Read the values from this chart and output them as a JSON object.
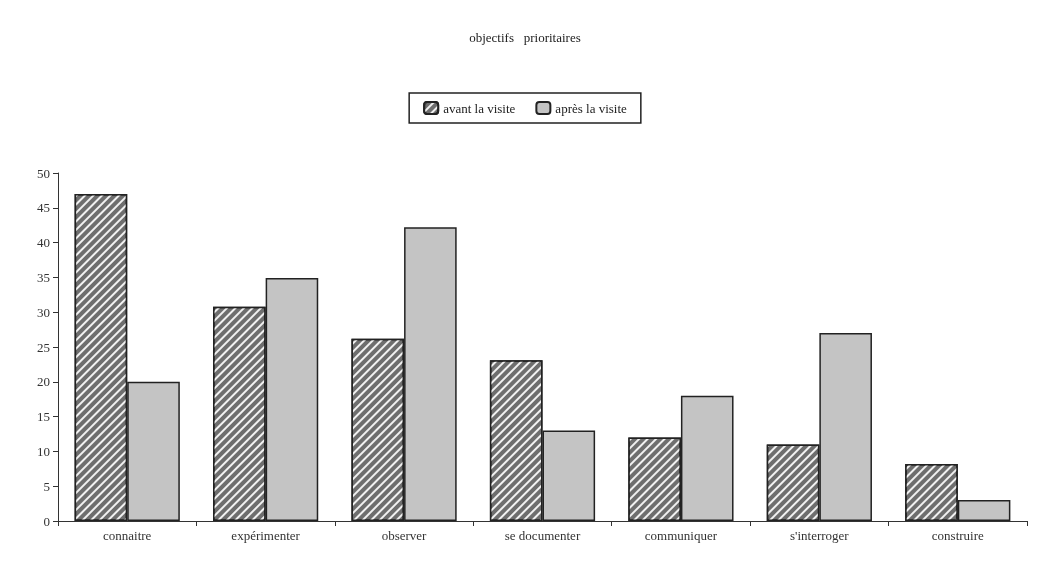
{
  "chart_data": {
    "type": "bar",
    "title": "objectifs   prioritaires",
    "categories": [
      "connaitre",
      "expérimenter",
      "observer",
      "se documenter",
      "communiquer",
      "s'interroger",
      "construire"
    ],
    "series": [
      {
        "name": "avant la visite",
        "color": "#6e6e6e",
        "values": [
          47,
          30.8,
          26.2,
          23.1,
          12,
          11,
          8.2
        ]
      },
      {
        "name": "après la visite",
        "color": "#c4c4c4",
        "values": [
          20,
          34.9,
          42.2,
          13,
          18,
          27,
          3
        ]
      }
    ],
    "ylim": [
      0,
      50
    ],
    "yticks": [
      0,
      5,
      10,
      15,
      20,
      25,
      30,
      35,
      40,
      45,
      50
    ],
    "grid": false,
    "legend": "top"
  }
}
